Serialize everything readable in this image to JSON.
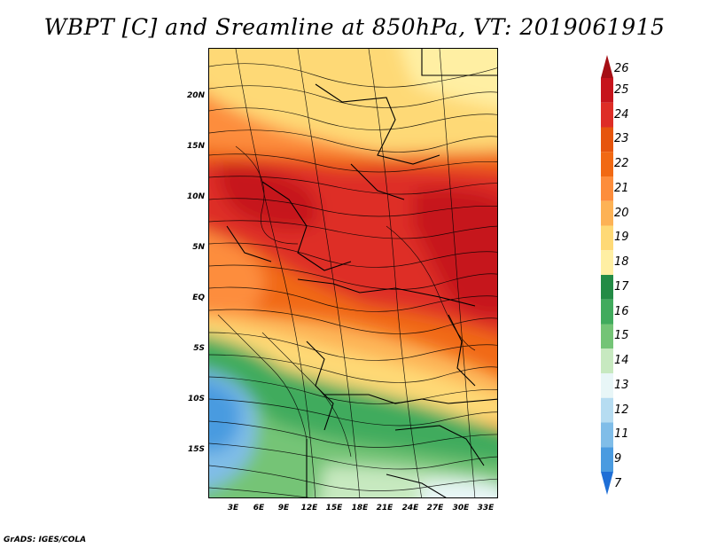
{
  "title": "WBPT [C] and Sreamline at 850hPa, VT: 2019061915",
  "footer": "GrADS: IGES/COLA",
  "map": {
    "lat_labels": [
      "20N",
      "15N",
      "10N",
      "5N",
      "EQ",
      "5S",
      "10S",
      "15S"
    ],
    "lon_labels": [
      "3E",
      "6E",
      "9E",
      "12E",
      "15E",
      "18E",
      "21E",
      "24E",
      "27E",
      "30E",
      "33E"
    ]
  },
  "colorbar": {
    "labels": [
      "26",
      "25",
      "24",
      "23",
      "22",
      "21",
      "20",
      "19",
      "18",
      "17",
      "16",
      "15",
      "14",
      "13",
      "12",
      "11",
      "9",
      "7"
    ],
    "colors": [
      "#a50f15",
      "#c6141c",
      "#de2d26",
      "#e6550d",
      "#f16913",
      "#fd8d3c",
      "#fdb255",
      "#fed976",
      "#ffefa3",
      "#238b45",
      "#41ab5d",
      "#74c476",
      "#c7e9c0",
      "#e8f6f7",
      "#b6dcf1",
      "#80bde8",
      "#4a9be0",
      "#1f6fd6"
    ]
  }
}
